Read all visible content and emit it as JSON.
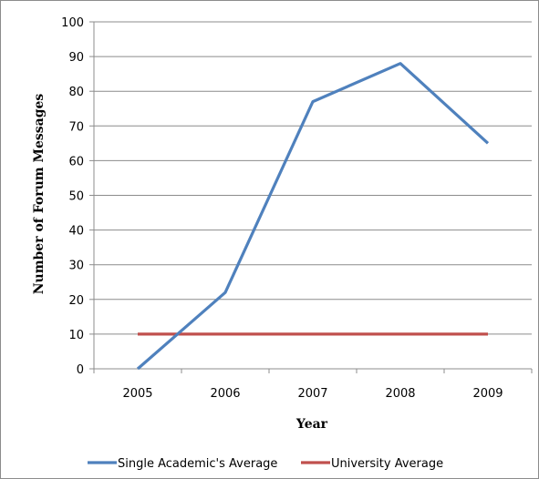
{
  "chart_data": {
    "type": "line",
    "title": "",
    "xlabel": "Year",
    "ylabel": "Number of Forum Messages",
    "categories": [
      "2005",
      "2006",
      "2007",
      "2008",
      "2009"
    ],
    "ylim": [
      0,
      100
    ],
    "yticks": [
      0,
      10,
      20,
      30,
      40,
      50,
      60,
      70,
      80,
      90,
      100
    ],
    "grid": "horizontal",
    "legend": "bottom",
    "series": [
      {
        "name": "Single Academic's Average",
        "values": [
          0,
          22,
          77,
          88,
          65
        ],
        "color": "#4F81BD"
      },
      {
        "name": "University Average",
        "values": [
          10,
          10,
          10,
          10,
          10
        ],
        "color": "#C0504D"
      }
    ]
  }
}
